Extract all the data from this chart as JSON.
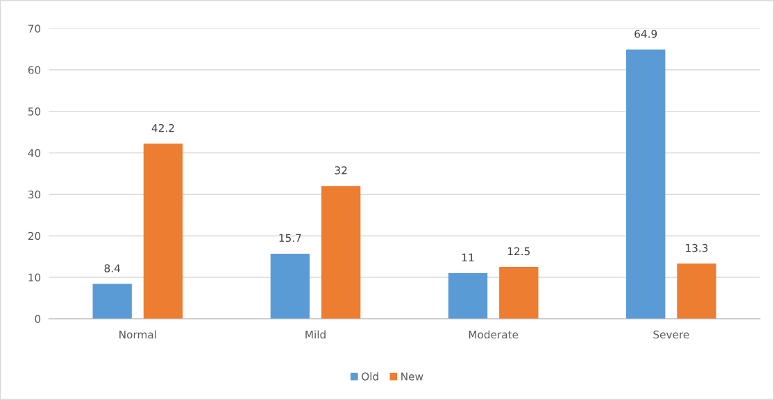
{
  "chart_data": {
    "type": "bar",
    "categories": [
      "Normal",
      "Mild",
      "Moderate",
      "Severe"
    ],
    "series": [
      {
        "name": "Old",
        "color": "#5b9bd5",
        "values": [
          8.4,
          15.7,
          11,
          64.9
        ]
      },
      {
        "name": "New",
        "color": "#ed7d31",
        "values": [
          42.2,
          32,
          12.5,
          13.3
        ]
      }
    ],
    "ylim": [
      0,
      70
    ],
    "yticks": [
      0,
      10,
      20,
      30,
      40,
      50,
      60,
      70
    ],
    "grid": "y",
    "legend": "bottom",
    "data_labels": true
  }
}
